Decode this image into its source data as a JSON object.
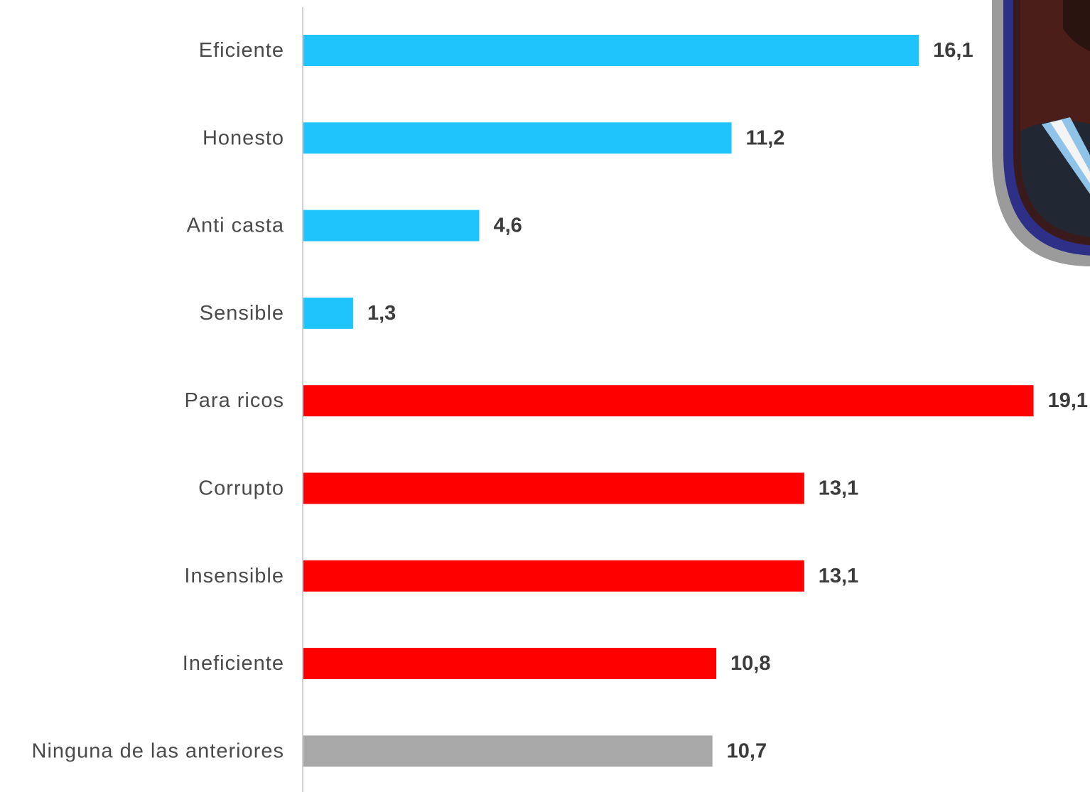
{
  "chart_data": {
    "type": "bar",
    "orientation": "horizontal",
    "categories": [
      "Eficiente",
      "Honesto",
      "Anti casta",
      "Sensible",
      "Para ricos",
      "Corrupto",
      "Insensible",
      "Ineficiente",
      "Ninguna de las anteriores"
    ],
    "values": [
      16.1,
      11.2,
      4.6,
      1.3,
      19.1,
      13.1,
      13.1,
      10.8,
      10.7
    ],
    "value_labels": [
      "16,1",
      "11,2",
      "4,6",
      "1,3",
      "19,1",
      "13,1",
      "13,1",
      "10,8",
      "10,7"
    ],
    "bar_colors": [
      "#20c4fd",
      "#20c4fd",
      "#20c4fd",
      "#20c4fd",
      "#fe0000",
      "#fe0000",
      "#fe0000",
      "#fe0000",
      "#a8a8a8"
    ],
    "axis_color": "#d0d0d0",
    "title": "",
    "xlabel": "",
    "ylabel": "",
    "xlim": [
      0,
      19.1
    ],
    "grid": false,
    "legend": "none"
  },
  "decor": {
    "portrait_icon": "portrait-badge-icon",
    "badge_border_color": "#2e2f86",
    "badge_outer_color": "#9b9b9b",
    "sash_color": "#8fc3e8"
  }
}
